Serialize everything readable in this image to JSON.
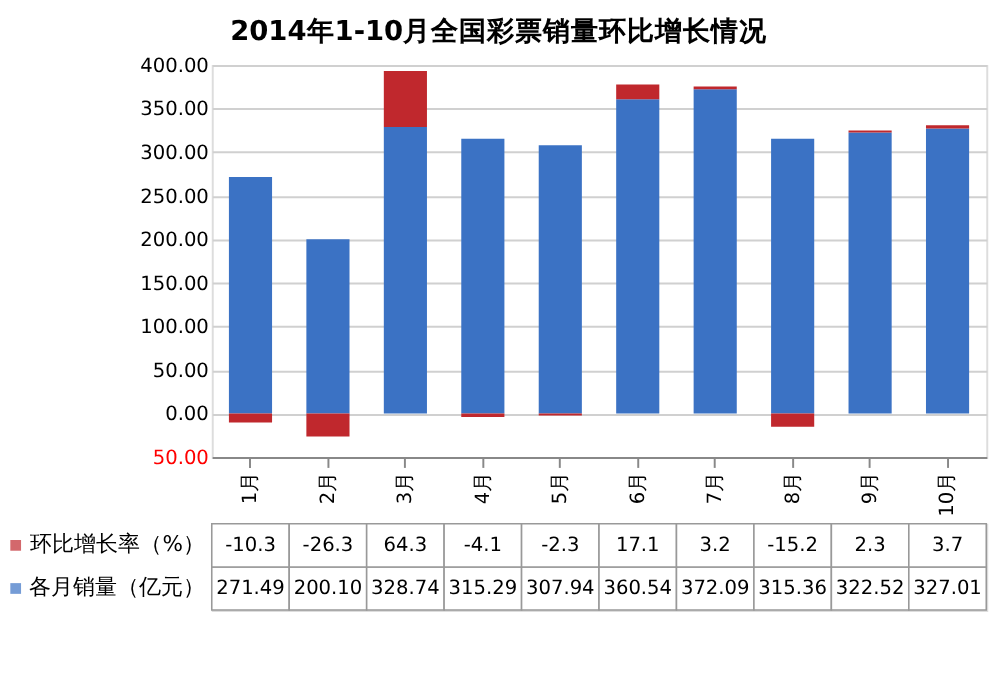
{
  "chart_data": {
    "type": "bar",
    "title": "2014年1-10月全国彩票销量环比增长情况",
    "categories": [
      "1月",
      "2月",
      "3月",
      "4月",
      "5月",
      "6月",
      "7月",
      "8月",
      "9月",
      "10月"
    ],
    "stacked": true,
    "series": [
      {
        "name": "各月销量（亿元）",
        "color": "#3b72c4",
        "values": [
          271.49,
          200.1,
          328.74,
          315.29,
          307.94,
          360.54,
          372.09,
          315.36,
          322.52,
          327.01
        ],
        "value_labels": [
          "271.49",
          "200.10",
          "328.74",
          "315.29",
          "307.94",
          "360.54",
          "372.09",
          "315.36",
          "322.52",
          "327.01"
        ]
      },
      {
        "name": "环比增长率（%）",
        "color": "#c0282d",
        "values": [
          -10.3,
          -26.3,
          64.3,
          -4.1,
          -2.3,
          17.1,
          3.2,
          -15.2,
          2.3,
          3.7
        ],
        "value_labels": [
          "-10.3",
          "-26.3",
          "64.3",
          "-4.1",
          "-2.3",
          "17.1",
          "3.2",
          "-15.2",
          "2.3",
          "3.7"
        ]
      }
    ],
    "ylim": [
      -50,
      400
    ],
    "yticks": [
      {
        "value": -50,
        "label": "50.00"
      },
      {
        "value": 0,
        "label": "0.00"
      },
      {
        "value": 50,
        "label": "50.00"
      },
      {
        "value": 100,
        "label": "100.00"
      },
      {
        "value": 150,
        "label": "150.00"
      },
      {
        "value": 200,
        "label": "200.00"
      },
      {
        "value": 250,
        "label": "250.00"
      },
      {
        "value": 300,
        "label": "300.00"
      },
      {
        "value": 350,
        "label": "350.00"
      },
      {
        "value": 400,
        "label": "400.00"
      }
    ],
    "grid": "y",
    "legend": "bottom"
  }
}
